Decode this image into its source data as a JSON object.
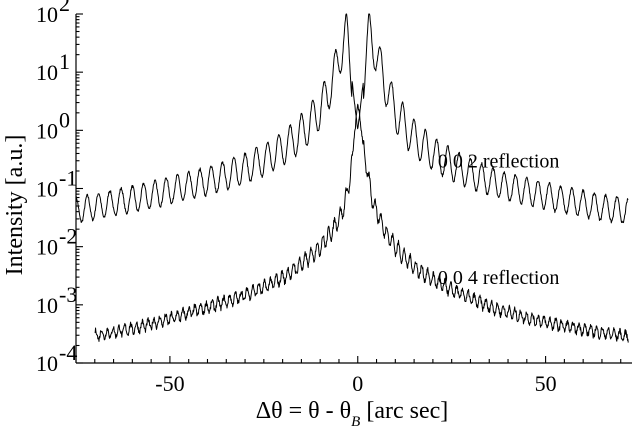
{
  "chart_data": {
    "type": "line",
    "title": "",
    "xlabel": "Δθ = θ - θ",
    "xlabel_subscript": "B",
    "xlabel_unit": " [arc sec]",
    "ylabel": "Intensity [a.u.]",
    "xlim": [
      -75,
      73
    ],
    "ylim": [
      0.0001,
      100
    ],
    "y_scale": "log",
    "grid": false,
    "legend": "none",
    "line_color": "#000000",
    "x_ticks": [
      {
        "value": -50,
        "label": "-50"
      },
      {
        "value": 0,
        "label": "0"
      },
      {
        "value": 50,
        "label": "50"
      }
    ],
    "y_ticks": [
      {
        "value": 0.0001,
        "base": "10",
        "exp": "-4"
      },
      {
        "value": 0.001,
        "base": "10",
        "exp": "-3"
      },
      {
        "value": 0.01,
        "base": "10",
        "exp": "-2"
      },
      {
        "value": 0.1,
        "base": "10",
        "exp": "-1"
      },
      {
        "value": 1,
        "base": "10",
        "exp": "0"
      },
      {
        "value": 10,
        "base": "10",
        "exp": "1"
      },
      {
        "value": 100,
        "base": "10",
        "exp": "2"
      }
    ],
    "series": [
      {
        "label": "0 0 2 reflection",
        "label_anchor": {
          "x": 37.5,
          "y": 0.3
        },
        "x": [
          -75,
          -72,
          -69,
          -66,
          -63,
          -60,
          -57,
          -54,
          -51,
          -48,
          -45,
          -42,
          -39,
          -36,
          -33,
          -30,
          -27,
          -24,
          -21,
          -18,
          -15,
          -12,
          -9,
          -6,
          -3,
          0,
          3,
          6,
          9,
          12,
          15,
          18,
          21,
          24,
          27,
          30,
          33,
          36,
          39,
          42,
          45,
          48,
          51,
          54,
          57,
          60,
          63,
          66,
          69,
          72
        ],
        "y": [
          0.042,
          0.046,
          0.05,
          0.055,
          0.06,
          0.065,
          0.072,
          0.08,
          0.09,
          0.1,
          0.11,
          0.125,
          0.14,
          0.16,
          0.19,
          0.22,
          0.27,
          0.33,
          0.45,
          0.6,
          0.9,
          1.5,
          3,
          10,
          50,
          1,
          50,
          12,
          3,
          1.3,
          0.75,
          0.5,
          0.36,
          0.28,
          0.22,
          0.18,
          0.15,
          0.13,
          0.11,
          0.1,
          0.09,
          0.08,
          0.072,
          0.065,
          0.06,
          0.055,
          0.05,
          0.046,
          0.043,
          0.04
        ]
      },
      {
        "label": "0 0 4 reflection",
        "label_anchor": {
          "x": 37.5,
          "y": 0.003
        },
        "x": [
          -70,
          -67,
          -64,
          -61,
          -58,
          -55,
          -52,
          -49,
          -46,
          -43,
          -40,
          -37,
          -34,
          -31,
          -28,
          -25,
          -22,
          -19,
          -16,
          -13,
          -10,
          -7,
          -4,
          -2,
          0,
          2,
          4,
          7,
          10,
          13,
          16,
          19,
          22,
          25,
          28,
          31,
          34,
          37,
          40,
          43,
          46,
          49,
          52,
          55,
          58,
          61,
          64,
          67,
          70,
          72
        ],
        "y": [
          0.0003,
          0.00032,
          0.00035,
          0.00038,
          0.00042,
          0.00047,
          0.00053,
          0.0006,
          0.0007,
          0.0008,
          0.0009,
          0.00105,
          0.0012,
          0.0014,
          0.0017,
          0.002,
          0.0025,
          0.0032,
          0.0045,
          0.0065,
          0.01,
          0.018,
          0.04,
          0.15,
          3,
          0.3,
          0.06,
          0.02,
          0.01,
          0.006,
          0.004,
          0.003,
          0.0023,
          0.0018,
          0.0015,
          0.0012,
          0.001,
          0.00085,
          0.00075,
          0.00065,
          0.00058,
          0.00052,
          0.00047,
          0.00043,
          0.0004,
          0.00037,
          0.00034,
          0.00032,
          0.0003,
          0.00028
        ]
      }
    ]
  }
}
